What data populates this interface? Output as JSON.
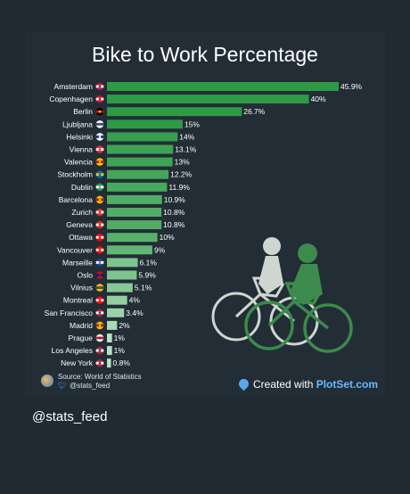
{
  "chart_data": {
    "type": "bar",
    "orientation": "horizontal",
    "title": "Bike to Work Percentage",
    "categories": [
      "Amsterdam",
      "Copenhagen",
      "Berlin",
      "Ljubljana",
      "Helsinki",
      "Vienna",
      "Valencia",
      "Stockholm",
      "Dublin",
      "Barcelona",
      "Zurich",
      "Geneva",
      "Ottawa",
      "Vancouver",
      "Marseille",
      "Oslo",
      "Vilnius",
      "Montreal",
      "San Francisco",
      "Madrid",
      "Prague",
      "Los Angeles",
      "New York"
    ],
    "values": [
      45.9,
      40,
      26.7,
      15,
      14,
      13.1,
      13,
      12.2,
      11.9,
      10.9,
      10.8,
      10.8,
      10,
      9,
      6.1,
      5.9,
      5.1,
      4,
      3.4,
      2,
      1,
      1,
      0.8
    ],
    "value_labels": [
      "45.9%",
      "40%",
      "26.7%",
      "15%",
      "14%",
      "13.1%",
      "13%",
      "12.2%",
      "11.9%",
      "10.9%",
      "10.8%",
      "10.8%",
      "10%",
      "9%",
      "6.1%",
      "5.9%",
      "5.1%",
      "4%",
      "3.4%",
      "2%",
      "1%",
      "1%",
      "0.8%"
    ],
    "xlim": [
      0,
      45.9
    ],
    "grid": false,
    "legend": "none",
    "colors": {
      "bar_high": "#2e9a46",
      "bar_low": "#c8ead2",
      "label": "#ffffff"
    }
  },
  "flag_colors": [
    [
      "#c8102e",
      "#ffffff",
      "#21468b"
    ],
    [
      "#c8102e",
      "#ffffff",
      "#c8102e"
    ],
    [
      "#000000",
      "#dd0000",
      "#ffce00"
    ],
    [
      "#ffffff",
      "#0055a4",
      "#ed1c24"
    ],
    [
      "#ffffff",
      "#003580",
      "#ffffff"
    ],
    [
      "#ed2939",
      "#ffffff",
      "#ed2939"
    ],
    [
      "#f1bf00",
      "#aa151b",
      "#f1bf00"
    ],
    [
      "#006aa7",
      "#fecc00",
      "#006aa7"
    ],
    [
      "#169b62",
      "#ffffff",
      "#ff883e"
    ],
    [
      "#f1bf00",
      "#aa151b",
      "#f1bf00"
    ],
    [
      "#d52b1e",
      "#ffffff",
      "#d52b1e"
    ],
    [
      "#d52b1e",
      "#ffffff",
      "#d52b1e"
    ],
    [
      "#ff0000",
      "#ffffff",
      "#ff0000"
    ],
    [
      "#ff0000",
      "#ffffff",
      "#ff0000"
    ],
    [
      "#0055a4",
      "#ffffff",
      "#ef4135"
    ],
    [
      "#ba0c2f",
      "#00205b",
      "#ba0c2f"
    ],
    [
      "#fdb913",
      "#006a44",
      "#c1272d"
    ],
    [
      "#ff0000",
      "#ffffff",
      "#ff0000"
    ],
    [
      "#b22234",
      "#ffffff",
      "#3c3b6e"
    ],
    [
      "#f1bf00",
      "#aa151b",
      "#f1bf00"
    ],
    [
      "#ffffff",
      "#d7141a",
      "#11457e"
    ],
    [
      "#b22234",
      "#ffffff",
      "#3c3b6e"
    ],
    [
      "#b22234",
      "#ffffff",
      "#3c3b6e"
    ]
  ],
  "source": {
    "line1": "Source: World of Statistics",
    "line2": "@stats_feed"
  },
  "credit": {
    "prefix": "Created with ",
    "brand": "PlotSet.com"
  },
  "handle": "@stats_feed",
  "illustration": {
    "name": "cyclists-illustration"
  }
}
